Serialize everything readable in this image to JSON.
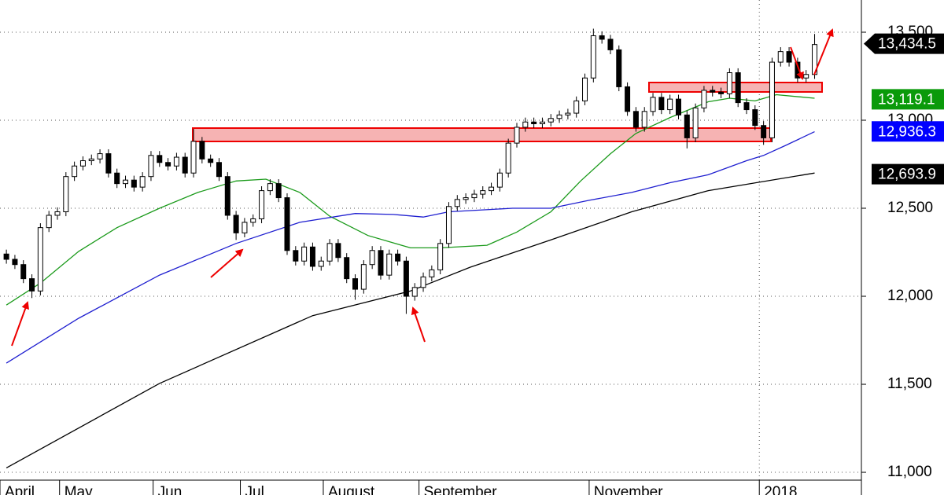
{
  "chart_data": {
    "type": "candlestick",
    "xlim": [
      -1.5,
      201
    ],
    "ylim": [
      10960,
      13683
    ],
    "xticks": [
      {
        "value": -1.5,
        "label": "April"
      },
      {
        "value": 12.5,
        "label": "May"
      },
      {
        "value": 34.5,
        "label": "Jun"
      },
      {
        "value": 55,
        "label": "Jul"
      },
      {
        "value": 74.5,
        "label": "August"
      },
      {
        "value": 97,
        "label": "September"
      },
      {
        "value": 137,
        "label": "November"
      },
      {
        "value": 177,
        "label": "2018"
      }
    ],
    "yticks": [
      {
        "value": 11000,
        "label": "11,000"
      },
      {
        "value": 11500,
        "label": "11,500"
      },
      {
        "value": 12000,
        "label": "12,000"
      },
      {
        "value": 12500,
        "label": "12,500"
      },
      {
        "value": 13000,
        "label": "13,000"
      },
      {
        "value": 13500,
        "label": "13,500"
      }
    ],
    "grid": true,
    "up_color": "#ffffff",
    "down_color": "#000000",
    "x": [
      0,
      2,
      4,
      6,
      8,
      10,
      12,
      14,
      16,
      18,
      20,
      22,
      24,
      26,
      28,
      30,
      32,
      34,
      36,
      38,
      40,
      42,
      44,
      46,
      48,
      50,
      52,
      54,
      56,
      58,
      60,
      62,
      64,
      66,
      68,
      70,
      72,
      74,
      76,
      78,
      80,
      82,
      84,
      86,
      88,
      90,
      92,
      94,
      96,
      98,
      100,
      102,
      104,
      106,
      108,
      110,
      112,
      114,
      116,
      118,
      120,
      122,
      124,
      126,
      128,
      130,
      132,
      134,
      136,
      138,
      140,
      142,
      144,
      146,
      148,
      150,
      152,
      154,
      156,
      158,
      160,
      162,
      164,
      166,
      168,
      170,
      172,
      174,
      176,
      178,
      180,
      182,
      184,
      186,
      188,
      190
    ],
    "open": [
      12240,
      12210,
      12180,
      12100,
      12030,
      12390,
      12460,
      12480,
      12680,
      12740,
      12770,
      12780,
      12810,
      12700,
      12640,
      12660,
      12620,
      12680,
      12800,
      12760,
      12740,
      12790,
      12700,
      12880,
      12780,
      12760,
      12680,
      12460,
      12360,
      12420,
      12440,
      12600,
      12640,
      12560,
      12260,
      12200,
      12280,
      12170,
      12200,
      12300,
      12220,
      12100,
      12040,
      12180,
      12260,
      12120,
      12240,
      12200,
      12000,
      12050,
      12110,
      12150,
      12300,
      12510,
      12550,
      12560,
      12580,
      12600,
      12620,
      12700,
      12870,
      12960,
      12990,
      12980,
      12990,
      13010,
      13030,
      13040,
      13110,
      13240,
      13480,
      13460,
      13400,
      13190,
      13050,
      12960,
      13050,
      13130,
      13060,
      13120,
      13030,
      12900,
      13070,
      13170,
      13160,
      13150,
      13270,
      13100,
      13060,
      12970,
      12900,
      13330,
      13390,
      13330,
      13240,
      13260
    ],
    "high": [
      12265,
      12235,
      12205,
      12125,
      12415,
      12485,
      12505,
      12705,
      12765,
      12795,
      12805,
      12835,
      12835,
      12725,
      12685,
      12685,
      12705,
      12825,
      12825,
      12785,
      12815,
      12815,
      12950,
      12905,
      12805,
      12785,
      12705,
      12485,
      12445,
      12465,
      12625,
      12665,
      12665,
      12585,
      12285,
      12305,
      12305,
      12225,
      12325,
      12325,
      12245,
      12125,
      12205,
      12285,
      12285,
      12265,
      12265,
      12225,
      12075,
      12135,
      12175,
      12325,
      12535,
      12575,
      12585,
      12605,
      12625,
      12645,
      12725,
      12895,
      12985,
      13015,
      13015,
      13015,
      13035,
      13055,
      13065,
      13135,
      13265,
      13520,
      13505,
      13485,
      13425,
      13215,
      13075,
      13075,
      13155,
      13155,
      13145,
      13145,
      13055,
      13095,
      13195,
      13195,
      13185,
      13295,
      13295,
      13125,
      13085,
      12995,
      13355,
      13415,
      13415,
      13355,
      13285,
      13490
    ],
    "low": [
      12185,
      12155,
      12075,
      11990,
      12005,
      12365,
      12435,
      12455,
      12655,
      12715,
      12745,
      12755,
      12675,
      12615,
      12615,
      12595,
      12595,
      12655,
      12735,
      12715,
      12715,
      12675,
      12675,
      12755,
      12735,
      12655,
      12435,
      12320,
      12335,
      12395,
      12415,
      12575,
      12535,
      12235,
      12175,
      12175,
      12145,
      12145,
      12175,
      12195,
      12075,
      11980,
      12015,
      12155,
      12095,
      12095,
      12175,
      11900,
      11975,
      12025,
      12085,
      12125,
      12275,
      12485,
      12525,
      12535,
      12555,
      12575,
      12595,
      12675,
      12845,
      12935,
      12955,
      12955,
      12965,
      12985,
      13005,
      13015,
      13085,
      13215,
      13435,
      13375,
      13165,
      13025,
      12935,
      12935,
      13025,
      13035,
      13035,
      13005,
      12840,
      12875,
      13045,
      13135,
      13125,
      13125,
      13075,
      13035,
      12945,
      12860,
      12875,
      13305,
      13305,
      13215,
      13215,
      13235
    ],
    "close": [
      12210,
      12180,
      12100,
      12030,
      12390,
      12460,
      12480,
      12680,
      12740,
      12770,
      12780,
      12810,
      12700,
      12640,
      12660,
      12620,
      12680,
      12800,
      12760,
      12740,
      12790,
      12700,
      12880,
      12780,
      12760,
      12680,
      12460,
      12360,
      12420,
      12440,
      12600,
      12640,
      12560,
      12260,
      12200,
      12280,
      12170,
      12200,
      12300,
      12220,
      12100,
      12040,
      12180,
      12260,
      12120,
      12240,
      12200,
      12000,
      12050,
      12110,
      12150,
      12300,
      12510,
      12550,
      12560,
      12580,
      12600,
      12620,
      12700,
      12870,
      12960,
      12990,
      12980,
      12990,
      13010,
      13030,
      13040,
      13110,
      13240,
      13480,
      13460,
      13400,
      13190,
      13050,
      12960,
      13050,
      13130,
      13060,
      13120,
      13030,
      12900,
      13070,
      13170,
      13160,
      13150,
      13270,
      13100,
      13060,
      12970,
      12900,
      13330,
      13390,
      13330,
      13240,
      13260,
      13430
    ],
    "overlays": [
      {
        "color": "#1a9a1a",
        "x": [
          0,
          8,
          17,
          26,
          36,
          45,
          54,
          61,
          69,
          76,
          85,
          95,
          102,
          113,
          120,
          128,
          135,
          142,
          148,
          156,
          165,
          170,
          176,
          181,
          190
        ],
        "values": [
          11950,
          12075,
          12255,
          12390,
          12500,
          12590,
          12655,
          12665,
          12590,
          12455,
          12345,
          12275,
          12275,
          12290,
          12365,
          12480,
          12655,
          12810,
          12925,
          13015,
          13105,
          13125,
          13110,
          13145,
          13125
        ]
      },
      {
        "color": "#1f1fd0",
        "x": [
          0,
          17,
          36,
          54,
          69,
          82,
          91,
          98,
          104,
          119,
          128,
          137,
          147,
          156,
          165,
          174,
          178,
          183,
          190
        ],
        "values": [
          11620,
          11875,
          12120,
          12300,
          12420,
          12470,
          12465,
          12450,
          12480,
          12500,
          12500,
          12545,
          12590,
          12645,
          12690,
          12770,
          12800,
          12855,
          12935
        ]
      },
      {
        "color": "#000000",
        "x": [
          0,
          36,
          72,
          95,
          109,
          128,
          147,
          165,
          190
        ],
        "values": [
          11025,
          11505,
          11890,
          12030,
          12165,
          12320,
          12480,
          12600,
          12700
        ]
      }
    ],
    "price_labels": [
      {
        "value": 13434.5,
        "label": "13,434.5",
        "color": "#000000"
      },
      {
        "value": 13119.1,
        "label": "13,119.1",
        "color": "#0a9a0a"
      },
      {
        "value": 12936.3,
        "label": "12,936.3",
        "color": "#0000ff"
      },
      {
        "value": 12693.9,
        "label": "12,693.9",
        "color": "#000000"
      }
    ]
  }
}
